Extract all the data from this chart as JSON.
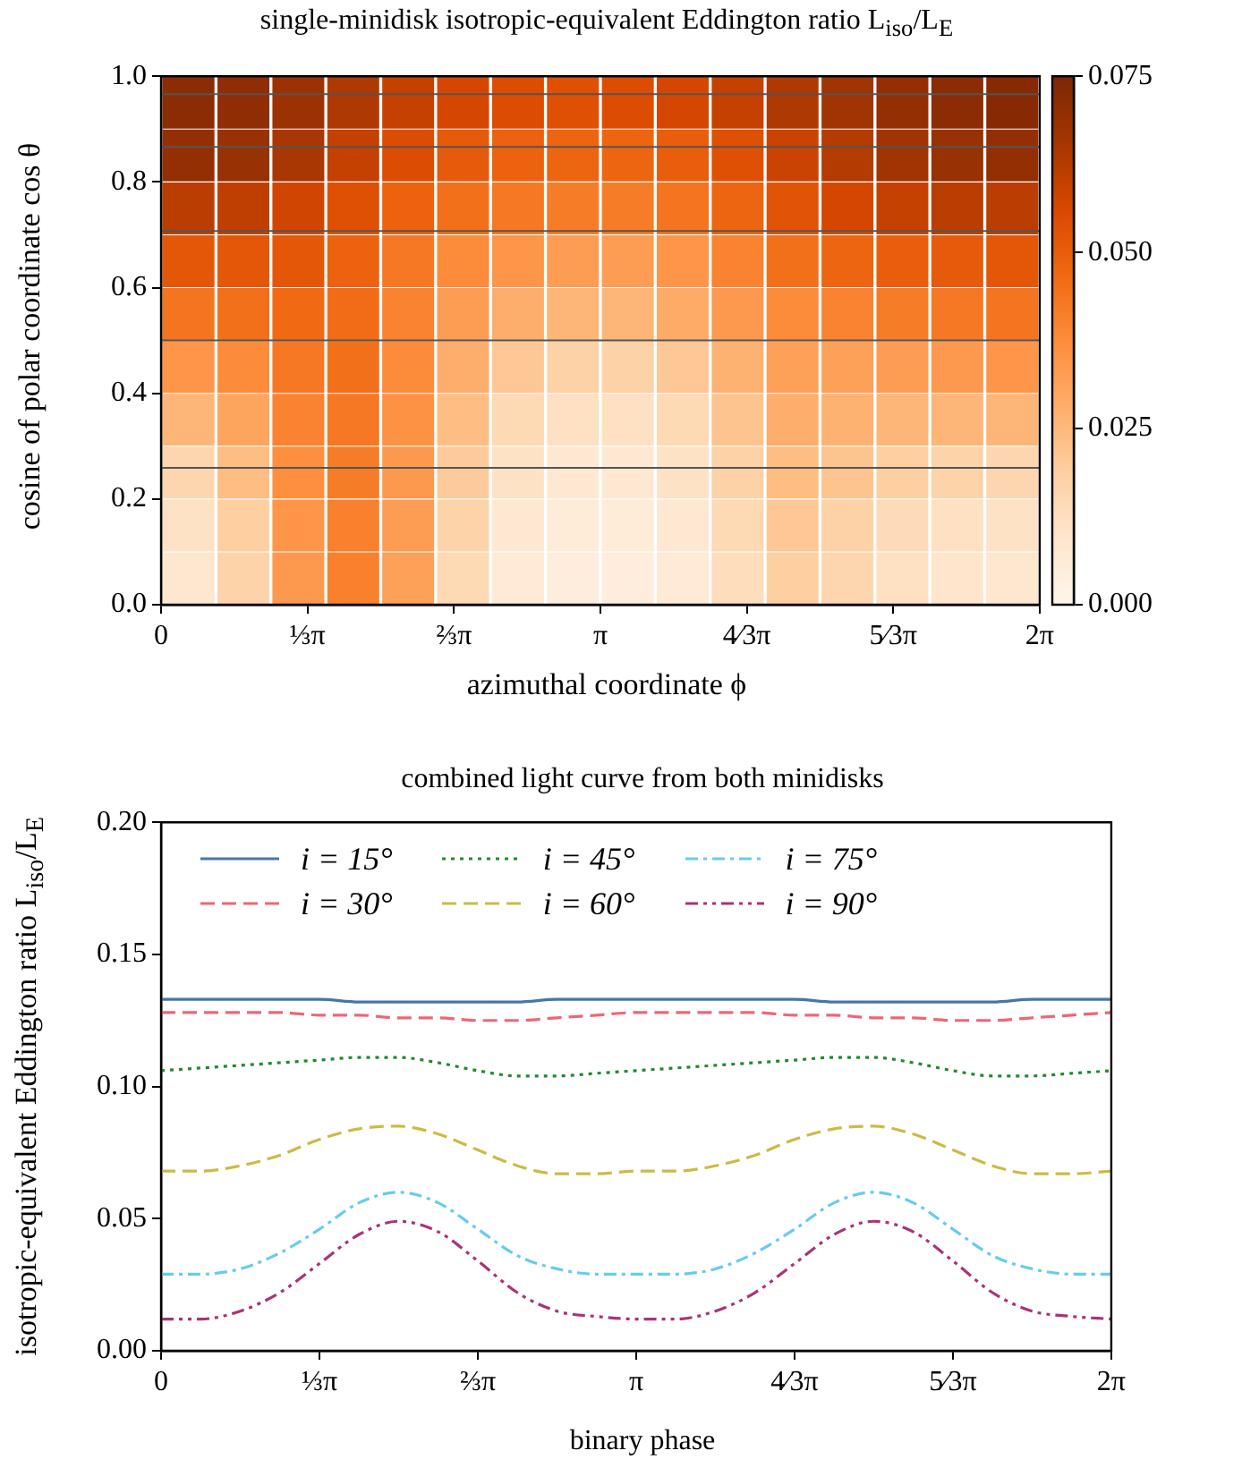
{
  "chart_data": [
    {
      "type": "scatter",
      "marker": "square",
      "title": "single-minidisk isotropic-equivalent Eddington ratio L$_{iso}$/L$_{E}$",
      "xlabel": "azimuthal coordinate ϕ",
      "ylabel": "cosine of polar coordinate cos θ",
      "x": [
        0.1963,
        0.589,
        0.9817,
        1.3744,
        1.7671,
        2.1598,
        2.5525,
        2.9452,
        3.3379,
        3.7306,
        4.1233,
        4.516,
        4.9087,
        5.3014,
        5.6941,
        6.0868,
        0.1963,
        0.589,
        0.9817,
        1.3744,
        1.7671,
        2.1598,
        2.5525,
        2.9452,
        3.3379,
        3.7306,
        4.1233,
        4.516,
        4.9087,
        5.3014,
        5.6941,
        6.0868,
        0.1963,
        0.589,
        0.9817,
        1.3744,
        1.7671,
        2.1598,
        2.5525,
        2.9452,
        3.3379,
        3.7306,
        4.1233,
        4.516,
        4.9087,
        5.3014,
        5.6941,
        6.0868,
        0.1963,
        0.589,
        0.9817,
        1.3744,
        1.7671,
        2.1598,
        2.5525,
        2.9452,
        3.3379,
        3.7306,
        4.1233,
        4.516,
        4.9087,
        5.3014,
        5.6941,
        6.0868,
        0.1963,
        0.589,
        0.9817,
        1.3744,
        1.7671,
        2.1598,
        2.5525,
        2.9452,
        3.3379,
        3.7306,
        4.1233,
        4.516,
        4.9087,
        5.3014,
        5.6941,
        6.0868,
        0.1963,
        0.589,
        0.9817,
        1.3744,
        1.7671,
        2.1598,
        2.5525,
        2.9452,
        3.3379,
        3.7306,
        4.1233,
        4.516,
        4.9087,
        5.3014,
        5.6941,
        6.0868,
        0.1963,
        0.589,
        0.9817,
        1.3744,
        1.7671,
        2.1598,
        2.5525,
        2.9452,
        3.3379,
        3.7306,
        4.1233,
        4.516,
        4.9087,
        5.3014,
        5.6941,
        6.0868,
        0.1963,
        0.589,
        0.9817,
        1.3744,
        1.7671,
        2.1598,
        2.5525,
        2.9452,
        3.3379,
        3.7306,
        4.1233,
        4.516,
        4.9087,
        5.3014,
        5.6941,
        6.0868,
        0.1963,
        0.589,
        0.9817,
        1.3744,
        1.7671,
        2.1598,
        2.5525,
        2.9452,
        3.3379,
        3.7306,
        4.1233,
        4.516,
        4.9087,
        5.3014,
        5.6941,
        6.0868,
        0.1963,
        0.589,
        0.9817,
        1.3744,
        1.7671,
        2.1598,
        2.5525,
        2.9452,
        3.3379,
        3.7306,
        4.1233,
        4.516,
        4.9087,
        5.3014,
        5.6941,
        6.0868
      ],
      "values": [
        0.95,
        0.95,
        0.95,
        0.95,
        0.95,
        0.95,
        0.95,
        0.95,
        0.95,
        0.95,
        0.95,
        0.95,
        0.95,
        0.95,
        0.95,
        0.95,
        0.85,
        0.85,
        0.85,
        0.85,
        0.85,
        0.85,
        0.85,
        0.85,
        0.85,
        0.85,
        0.85,
        0.85,
        0.85,
        0.85,
        0.85,
        0.85,
        0.75,
        0.75,
        0.75,
        0.75,
        0.75,
        0.75,
        0.75,
        0.75,
        0.75,
        0.75,
        0.75,
        0.75,
        0.75,
        0.75,
        0.75,
        0.75,
        0.65,
        0.65,
        0.65,
        0.65,
        0.65,
        0.65,
        0.65,
        0.65,
        0.65,
        0.65,
        0.65,
        0.65,
        0.65,
        0.65,
        0.65,
        0.65,
        0.55,
        0.55,
        0.55,
        0.55,
        0.55,
        0.55,
        0.55,
        0.55,
        0.55,
        0.55,
        0.55,
        0.55,
        0.55,
        0.55,
        0.55,
        0.55,
        0.45,
        0.45,
        0.45,
        0.45,
        0.45,
        0.45,
        0.45,
        0.45,
        0.45,
        0.45,
        0.45,
        0.45,
        0.45,
        0.45,
        0.45,
        0.45,
        0.35,
        0.35,
        0.35,
        0.35,
        0.35,
        0.35,
        0.35,
        0.35,
        0.35,
        0.35,
        0.35,
        0.35,
        0.35,
        0.35,
        0.35,
        0.35,
        0.25,
        0.25,
        0.25,
        0.25,
        0.25,
        0.25,
        0.25,
        0.25,
        0.25,
        0.25,
        0.25,
        0.25,
        0.25,
        0.25,
        0.25,
        0.25,
        0.15,
        0.15,
        0.15,
        0.15,
        0.15,
        0.15,
        0.15,
        0.15,
        0.15,
        0.15,
        0.15,
        0.15,
        0.15,
        0.15,
        0.15,
        0.15,
        0.05,
        0.05,
        0.05,
        0.05,
        0.05,
        0.05,
        0.05,
        0.05,
        0.05,
        0.05,
        0.05,
        0.05,
        0.05,
        0.05,
        0.05,
        0.05
      ],
      "cvalues": [
        0.072,
        0.071,
        0.068,
        0.064,
        0.06,
        0.057,
        0.055,
        0.054,
        0.055,
        0.057,
        0.06,
        0.064,
        0.067,
        0.07,
        0.072,
        0.073,
        0.07,
        0.069,
        0.065,
        0.06,
        0.055,
        0.051,
        0.049,
        0.048,
        0.048,
        0.05,
        0.054,
        0.059,
        0.063,
        0.067,
        0.069,
        0.07,
        0.062,
        0.061,
        0.058,
        0.054,
        0.049,
        0.045,
        0.043,
        0.042,
        0.042,
        0.044,
        0.048,
        0.053,
        0.057,
        0.06,
        0.062,
        0.062,
        0.052,
        0.052,
        0.052,
        0.049,
        0.043,
        0.038,
        0.035,
        0.033,
        0.033,
        0.035,
        0.04,
        0.045,
        0.048,
        0.05,
        0.051,
        0.052,
        0.044,
        0.045,
        0.047,
        0.046,
        0.04,
        0.033,
        0.028,
        0.026,
        0.026,
        0.029,
        0.034,
        0.038,
        0.04,
        0.042,
        0.043,
        0.044,
        0.035,
        0.038,
        0.043,
        0.045,
        0.038,
        0.028,
        0.021,
        0.018,
        0.018,
        0.021,
        0.027,
        0.032,
        0.032,
        0.033,
        0.034,
        0.035,
        0.026,
        0.031,
        0.04,
        0.043,
        0.036,
        0.024,
        0.015,
        0.012,
        0.012,
        0.015,
        0.022,
        0.028,
        0.027,
        0.026,
        0.026,
        0.026,
        0.016,
        0.024,
        0.037,
        0.042,
        0.034,
        0.02,
        0.011,
        0.008,
        0.008,
        0.011,
        0.018,
        0.024,
        0.022,
        0.019,
        0.017,
        0.016,
        0.011,
        0.019,
        0.035,
        0.041,
        0.033,
        0.017,
        0.008,
        0.006,
        0.006,
        0.008,
        0.015,
        0.021,
        0.018,
        0.014,
        0.012,
        0.011,
        0.009,
        0.017,
        0.034,
        0.041,
        0.032,
        0.015,
        0.007,
        0.005,
        0.005,
        0.007,
        0.013,
        0.019,
        0.016,
        0.012,
        0.01,
        0.009
      ],
      "xlim": [
        0,
        6.2832
      ],
      "xticks": [
        0,
        {
          "value": 1.0472,
          "label": "⅓π"
        },
        {
          "value": 2.0944,
          "label": "⅔π"
        },
        {
          "value": 3.1416,
          "label": "π"
        },
        {
          "value": 4.1888,
          "label": "4⁄3π"
        },
        {
          "value": 5.236,
          "label": "5⁄3π"
        },
        {
          "value": 6.2832,
          "label": "2π"
        }
      ],
      "ylim": [
        0,
        1
      ],
      "yticks": [
        {
          "value": 0,
          "label": "0.0"
        },
        0.2,
        0.4,
        0.6,
        0.8,
        {
          "value": 1,
          "label": "1.0"
        }
      ],
      "clim": [
        0,
        0.075
      ],
      "cticks": [
        {
          "value": 0,
          "label": "0.000"
        },
        0.025,
        {
          "value": 0.05,
          "label": "0.050"
        },
        0.075
      ],
      "ref_lines": [
        {
          "axis": "y",
          "value": 0.259,
          "color": "#555555"
        },
        {
          "axis": "y",
          "value": 0.5,
          "color": "#555555"
        },
        {
          "axis": "y",
          "value": 0.707,
          "color": "#555555"
        },
        {
          "axis": "y",
          "value": 0.866,
          "color": "#555555"
        },
        {
          "axis": "y",
          "value": 0.966,
          "color": "#555555"
        }
      ]
    },
    {
      "type": "line",
      "title": "combined light curve from both minidisks",
      "xlabel": "binary phase",
      "ylabel": "isotropic-equivalent Eddington ratio L$_{iso}$/L$_{E}$",
      "x": [
        0,
        0.2618,
        0.5236,
        0.7854,
        1.0472,
        1.309,
        1.5708,
        1.8326,
        2.0944,
        2.3562,
        2.618,
        2.8798,
        3.1416,
        3.4034,
        3.6652,
        3.927,
        4.1888,
        4.4506,
        4.7124,
        4.9742,
        5.236,
        5.4978,
        5.7596,
        6.0214,
        6.2832
      ],
      "series": [
        {
          "name": "i = 15°",
          "color": "#4477aa",
          "line_style": "solid",
          "values": [
            0.133,
            0.133,
            0.133,
            0.133,
            0.133,
            0.132,
            0.132,
            0.132,
            0.132,
            0.132,
            0.133,
            0.133,
            0.133,
            0.133,
            0.133,
            0.133,
            0.133,
            0.132,
            0.132,
            0.132,
            0.132,
            0.132,
            0.133,
            0.133,
            0.133
          ]
        },
        {
          "name": "i = 30°",
          "color": "#ee6677",
          "line_style": "dashed",
          "values": [
            0.128,
            0.128,
            0.128,
            0.128,
            0.127,
            0.127,
            0.126,
            0.126,
            0.125,
            0.125,
            0.126,
            0.127,
            0.128,
            0.128,
            0.128,
            0.128,
            0.127,
            0.127,
            0.126,
            0.126,
            0.125,
            0.125,
            0.126,
            0.127,
            0.128
          ]
        },
        {
          "name": "i = 45°",
          "color": "#228833",
          "line_style": "dotted",
          "values": [
            0.106,
            0.107,
            0.108,
            0.109,
            0.11,
            0.111,
            0.111,
            0.109,
            0.106,
            0.104,
            0.104,
            0.105,
            0.106,
            0.107,
            0.108,
            0.109,
            0.11,
            0.111,
            0.111,
            0.109,
            0.106,
            0.104,
            0.104,
            0.105,
            0.106
          ]
        },
        {
          "name": "i = 60°",
          "color": "#ccbb44",
          "line_style": "dashed",
          "values": [
            0.068,
            0.068,
            0.07,
            0.074,
            0.08,
            0.084,
            0.085,
            0.082,
            0.076,
            0.07,
            0.067,
            0.067,
            0.068,
            0.068,
            0.07,
            0.074,
            0.08,
            0.084,
            0.085,
            0.082,
            0.076,
            0.07,
            0.067,
            0.067,
            0.068
          ]
        },
        {
          "name": "i = 75°",
          "color": "#66ccee",
          "line_style": "dashdot",
          "values": [
            0.029,
            0.029,
            0.031,
            0.037,
            0.046,
            0.056,
            0.06,
            0.056,
            0.046,
            0.036,
            0.031,
            0.029,
            0.029,
            0.029,
            0.031,
            0.037,
            0.046,
            0.056,
            0.06,
            0.056,
            0.046,
            0.036,
            0.031,
            0.029,
            0.029
          ]
        },
        {
          "name": "i = 90°",
          "color": "#aa3377",
          "line_style": "dashdotdot",
          "values": [
            0.012,
            0.012,
            0.015,
            0.022,
            0.033,
            0.044,
            0.049,
            0.045,
            0.034,
            0.022,
            0.015,
            0.013,
            0.012,
            0.012,
            0.015,
            0.022,
            0.033,
            0.044,
            0.049,
            0.045,
            0.034,
            0.022,
            0.015,
            0.013,
            0.012
          ]
        }
      ],
      "xlim": [
        0,
        6.2832
      ],
      "xticks": [
        0,
        {
          "value": 1.0472,
          "label": "⅓π"
        },
        {
          "value": 2.0944,
          "label": "⅔π"
        },
        {
          "value": 3.1416,
          "label": "π"
        },
        {
          "value": 4.1888,
          "label": "4⁄3π"
        },
        {
          "value": 5.236,
          "label": "5⁄3π"
        },
        {
          "value": 6.2832,
          "label": "2π"
        }
      ],
      "ylim": [
        0,
        0.2
      ],
      "yticks": [
        {
          "value": 0,
          "label": "0.00"
        },
        0.05,
        {
          "value": 0.1,
          "label": "0.10"
        },
        0.15,
        {
          "value": 0.2,
          "label": "0.20"
        }
      ],
      "legend": "top"
    }
  ]
}
